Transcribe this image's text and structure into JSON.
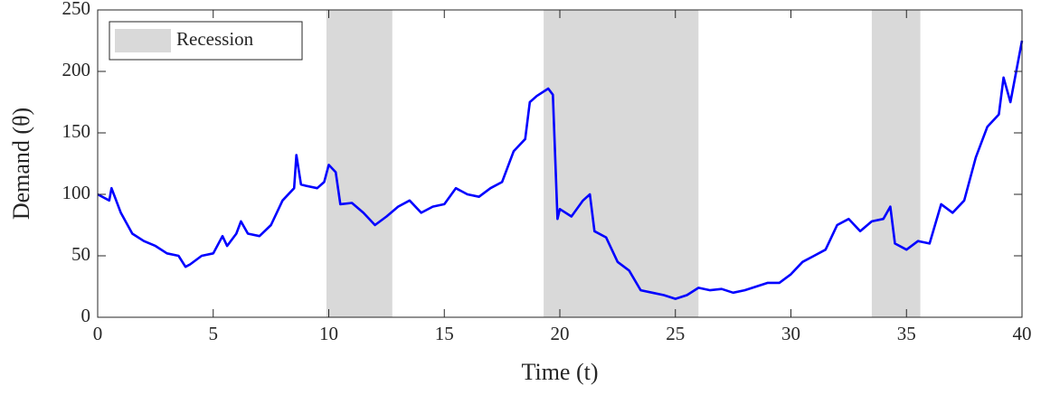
{
  "chart_data": {
    "type": "line",
    "xlabel": "Time (t)",
    "ylabel": "Demand (θ)",
    "xlim": [
      0,
      40
    ],
    "xticks": [
      0,
      5,
      10,
      15,
      20,
      25,
      30,
      35,
      40
    ],
    "ylim": [
      0,
      250
    ],
    "yticks": [
      0,
      50,
      100,
      150,
      200,
      250
    ],
    "legend": "upper left",
    "bands": {
      "name": "Recession",
      "color": "#d9d9d9",
      "ranges": [
        [
          9.9,
          12.75
        ],
        [
          19.3,
          26.0
        ],
        [
          33.5,
          35.6
        ]
      ]
    },
    "x": [
      0,
      0.5,
      0.6,
      1,
      1.5,
      2,
      2.5,
      3,
      3.5,
      3.8,
      4,
      4.5,
      5,
      5.4,
      5.6,
      6,
      6.2,
      6.5,
      7,
      7.5,
      8,
      8.5,
      8.6,
      8.8,
      9,
      9.5,
      9.8,
      10,
      10.3,
      10.5,
      11,
      11.5,
      12,
      12.5,
      13,
      13.5,
      14,
      14.5,
      15,
      15.5,
      16,
      16.5,
      17,
      17.5,
      18,
      18.5,
      18.7,
      19,
      19.5,
      19.7,
      19.9,
      20,
      20.5,
      21,
      21.3,
      21.5,
      22,
      22.5,
      23,
      23.5,
      24,
      24.5,
      25,
      25.5,
      26,
      26.5,
      27,
      27.5,
      28,
      28.5,
      29,
      29.5,
      30,
      30.5,
      31,
      31.5,
      32,
      32.5,
      33,
      33.5,
      34,
      34.3,
      34.5,
      35,
      35.5,
      36,
      36.5,
      37,
      37.5,
      38,
      38.5,
      39,
      39.2,
      39.5,
      40
    ],
    "series": [
      {
        "color": "#0000ff",
        "values": [
          100,
          95,
          105,
          85,
          68,
          62,
          58,
          52,
          50,
          41,
          43,
          50,
          52,
          66,
          58,
          68,
          78,
          68,
          66,
          75,
          95,
          105,
          132,
          108,
          107,
          105,
          110,
          124,
          118,
          92,
          93,
          85,
          75,
          82,
          90,
          95,
          85,
          90,
          92,
          105,
          100,
          98,
          105,
          110,
          135,
          145,
          175,
          180,
          186,
          181,
          80,
          88,
          82,
          95,
          100,
          70,
          65,
          45,
          38,
          22,
          20,
          18,
          15,
          18,
          24,
          22,
          23,
          20,
          22,
          25,
          28,
          28,
          35,
          45,
          50,
          55,
          75,
          80,
          70,
          78,
          80,
          90,
          60,
          55,
          62,
          60,
          92,
          85,
          95,
          130,
          155,
          165,
          195,
          175,
          225
        ]
      }
    ]
  }
}
